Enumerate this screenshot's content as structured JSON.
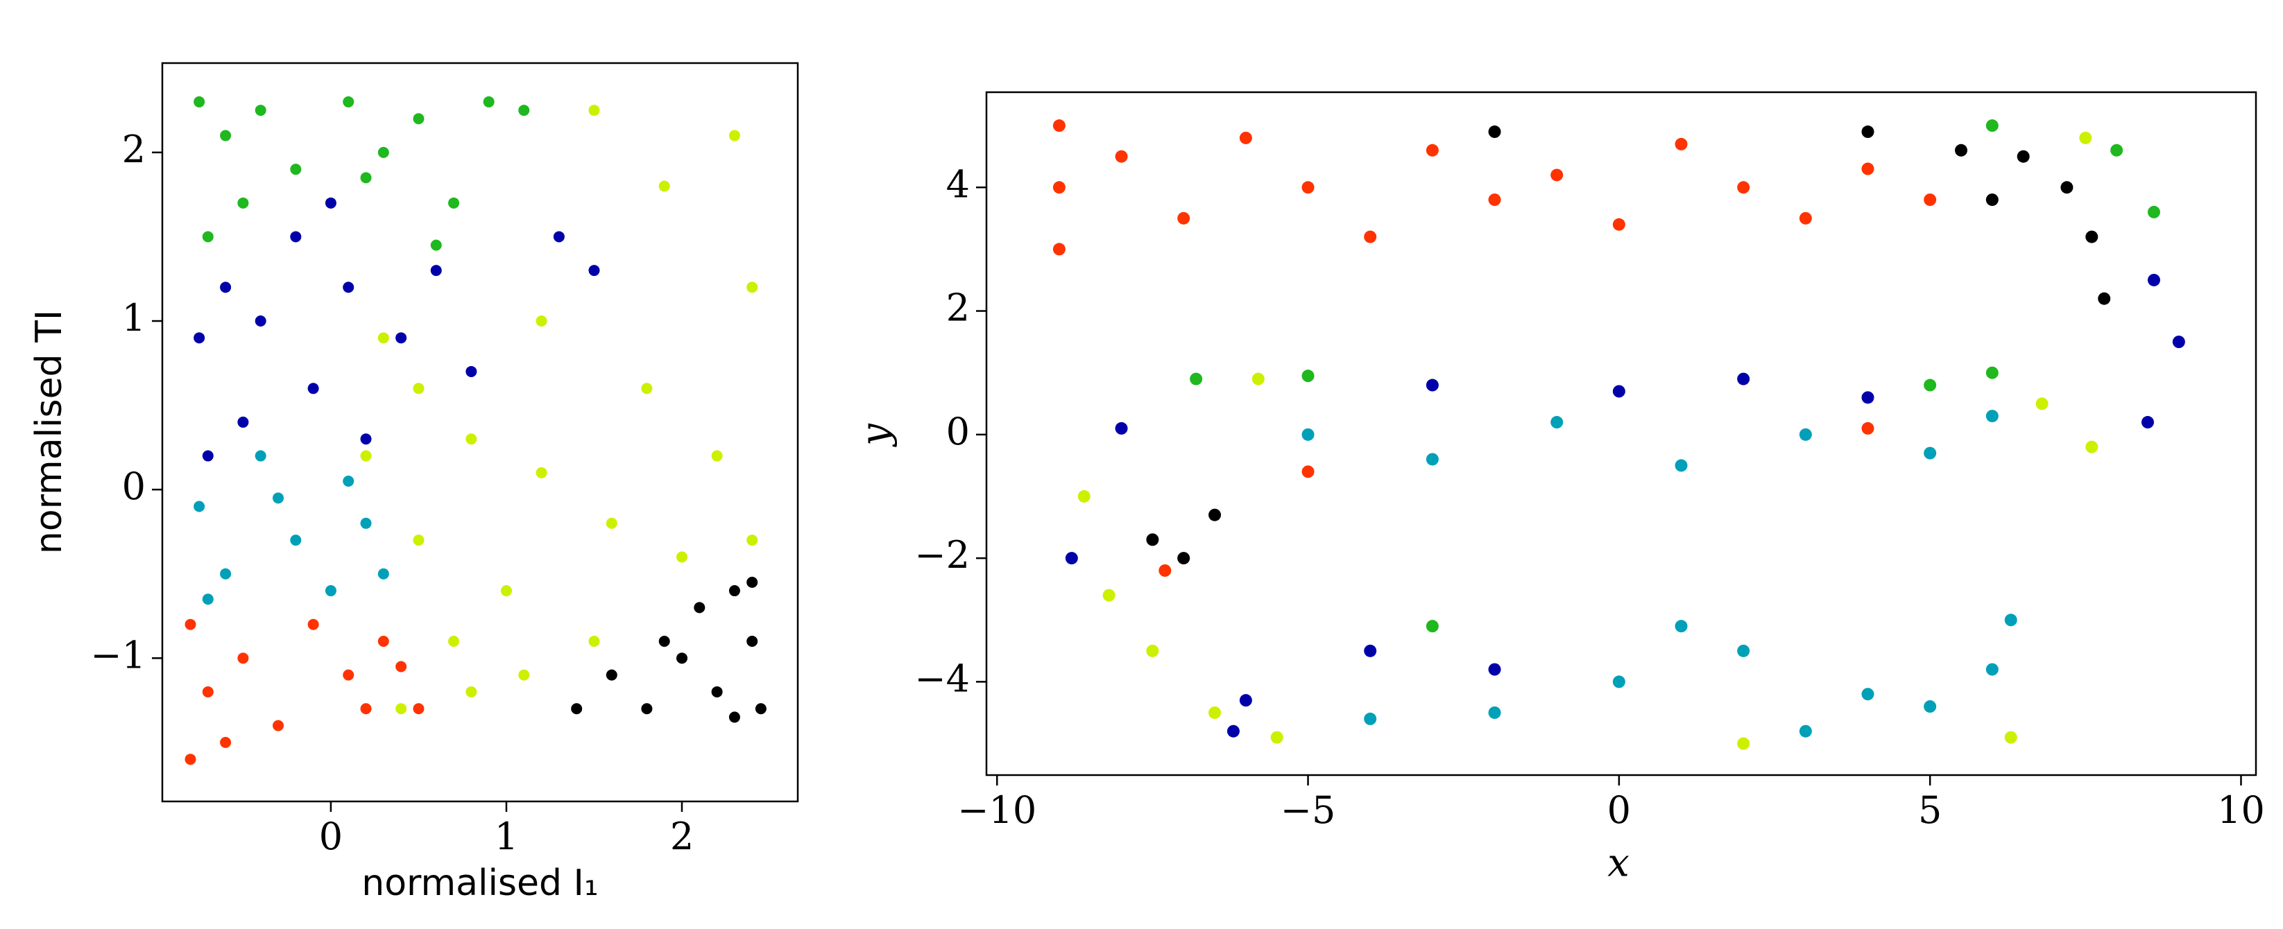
{
  "chart_data": [
    {
      "type": "scatter",
      "xlabel": "normalised I₁",
      "ylabel": "normalised TI",
      "xlim": [
        -0.96,
        2.66
      ],
      "ylim": [
        -1.85,
        2.53
      ],
      "xticks": [
        0,
        1,
        2
      ],
      "yticks": [
        {
          "value": -1,
          "label": "−1"
        },
        0,
        1,
        2
      ],
      "series": [
        {
          "color": "#1fb81f",
          "x": [
            -0.75,
            -0.6,
            -0.4,
            -0.2,
            0.1,
            0.3,
            0.5,
            0.7,
            -0.7,
            0.9,
            1.1,
            0.6,
            -0.5,
            0.2
          ],
          "y": [
            2.3,
            2.1,
            2.25,
            1.9,
            2.3,
            2.0,
            2.2,
            1.7,
            1.5,
            2.3,
            2.25,
            1.45,
            1.7,
            1.85
          ]
        },
        {
          "color": "#0000aa",
          "x": [
            -0.75,
            -0.6,
            -0.4,
            -0.2,
            0,
            0.1,
            -0.5,
            -0.1,
            0.2,
            -0.7,
            0.6,
            0.8,
            1.3,
            1.5,
            0.4
          ],
          "y": [
            0.9,
            1.2,
            1.0,
            1.5,
            1.7,
            1.2,
            0.4,
            0.6,
            0.3,
            0.2,
            1.3,
            0.7,
            1.5,
            1.3,
            0.9
          ]
        },
        {
          "color": "#ccf000",
          "x": [
            0.3,
            0.5,
            0.2,
            0.8,
            1.2,
            1.6,
            2.0,
            0.5,
            1.0,
            1.5,
            0.8,
            0.4,
            1.5,
            1.9,
            2.3,
            2.4,
            1.8,
            2.2,
            1.2,
            2.4,
            1.1,
            0.7
          ],
          "y": [
            0.9,
            0.6,
            0.2,
            0.3,
            0.1,
            -0.2,
            -0.4,
            -0.3,
            -0.6,
            -0.9,
            -1.2,
            -1.3,
            2.25,
            1.8,
            2.1,
            1.2,
            0.6,
            0.2,
            1.0,
            -0.3,
            -1.1,
            -0.9
          ]
        },
        {
          "color": "#00a0b8",
          "x": [
            -0.75,
            -0.6,
            -0.4,
            -0.2,
            0,
            0.2,
            0.3,
            -0.7,
            -0.3,
            0.1
          ],
          "y": [
            -0.1,
            -0.5,
            0.2,
            -0.3,
            -0.6,
            -0.2,
            -0.5,
            -0.65,
            -0.05,
            0.05
          ]
        },
        {
          "color": "#ff3300",
          "x": [
            -0.8,
            -0.7,
            -0.5,
            -0.3,
            -0.1,
            0.1,
            0.3,
            0.5,
            -0.6,
            -0.8,
            0.2,
            0.4
          ],
          "y": [
            -0.8,
            -1.2,
            -1.0,
            -1.4,
            -0.8,
            -1.1,
            -0.9,
            -1.3,
            -1.5,
            -1.6,
            -1.3,
            -1.05
          ]
        },
        {
          "color": "#000000",
          "x": [
            1.4,
            1.6,
            1.8,
            2.0,
            2.1,
            2.2,
            2.3,
            2.4,
            2.45,
            1.9,
            2.3,
            2.4
          ],
          "y": [
            -1.3,
            -1.1,
            -1.3,
            -1.0,
            -0.7,
            -1.2,
            -0.6,
            -0.9,
            -1.3,
            -0.9,
            -1.35,
            -0.55
          ]
        }
      ]
    },
    {
      "type": "scatter",
      "xlabel": "x",
      "ylabel": "y",
      "xlim": [
        -10.17,
        10.24
      ],
      "ylim": [
        -5.51,
        5.54
      ],
      "xticks": [
        {
          "value": -10,
          "label": "−10"
        },
        {
          "value": -5,
          "label": "−5"
        },
        0,
        5,
        10
      ],
      "yticks": [
        {
          "value": -4,
          "label": "−4"
        },
        {
          "value": -2,
          "label": "−2"
        },
        0,
        2,
        4
      ],
      "series": [
        {
          "color": "#ff3300",
          "x": [
            -9,
            -9,
            -9,
            -8,
            -7,
            -6,
            -5,
            -4,
            -3,
            -2,
            -1,
            0,
            1,
            2,
            3,
            4,
            5,
            -5,
            -7.3,
            4
          ],
          "y": [
            5,
            4,
            3,
            4.5,
            3.5,
            4.8,
            4,
            3.2,
            4.6,
            3.8,
            4.2,
            3.4,
            4.7,
            4,
            3.5,
            4.3,
            3.8,
            -0.6,
            -2.2,
            0.1
          ]
        },
        {
          "color": "#000000",
          "x": [
            4,
            5.5,
            6,
            6.5,
            7.2,
            7.6,
            7.8,
            -6.5,
            -7,
            -7.5,
            -2
          ],
          "y": [
            4.9,
            4.6,
            3.8,
            4.5,
            4,
            3.2,
            2.2,
            -1.3,
            -2,
            -1.7,
            4.9
          ]
        },
        {
          "color": "#1fb81f",
          "x": [
            6,
            8,
            6,
            5,
            -6.8,
            -5,
            -3,
            8.6
          ],
          "y": [
            5,
            4.6,
            1,
            0.8,
            0.9,
            0.95,
            -3.1,
            3.6
          ]
        },
        {
          "color": "#0000aa",
          "x": [
            8.6,
            9,
            8.5,
            2,
            0,
            -3,
            -4,
            -2,
            -6,
            -8.8,
            -8,
            -6.2,
            4
          ],
          "y": [
            2.5,
            1.5,
            0.2,
            0.9,
            0.7,
            0.8,
            -3.5,
            -3.8,
            -4.3,
            -2,
            0.1,
            -4.8,
            0.6
          ]
        },
        {
          "color": "#ccf000",
          "x": [
            7.6,
            6.8,
            -5.8,
            -7.5,
            -8.2,
            -6.5,
            -5.5,
            -8.6,
            7.5,
            2,
            6.3
          ],
          "y": [
            -0.2,
            0.5,
            0.9,
            -3.5,
            -2.6,
            -4.5,
            -4.9,
            -1,
            4.8,
            -5,
            -4.9
          ]
        },
        {
          "color": "#00a0b8",
          "x": [
            -5,
            -3,
            -1,
            1,
            3,
            5,
            6,
            -4,
            -2,
            0,
            2,
            4,
            6,
            6.3,
            1,
            3,
            5
          ],
          "y": [
            0,
            -0.4,
            0.2,
            -0.5,
            0,
            -0.3,
            0.3,
            -4.6,
            -4.5,
            -4,
            -3.5,
            -4.2,
            -3.8,
            -3,
            -3.1,
            -4.8,
            -4.4
          ]
        }
      ]
    }
  ]
}
